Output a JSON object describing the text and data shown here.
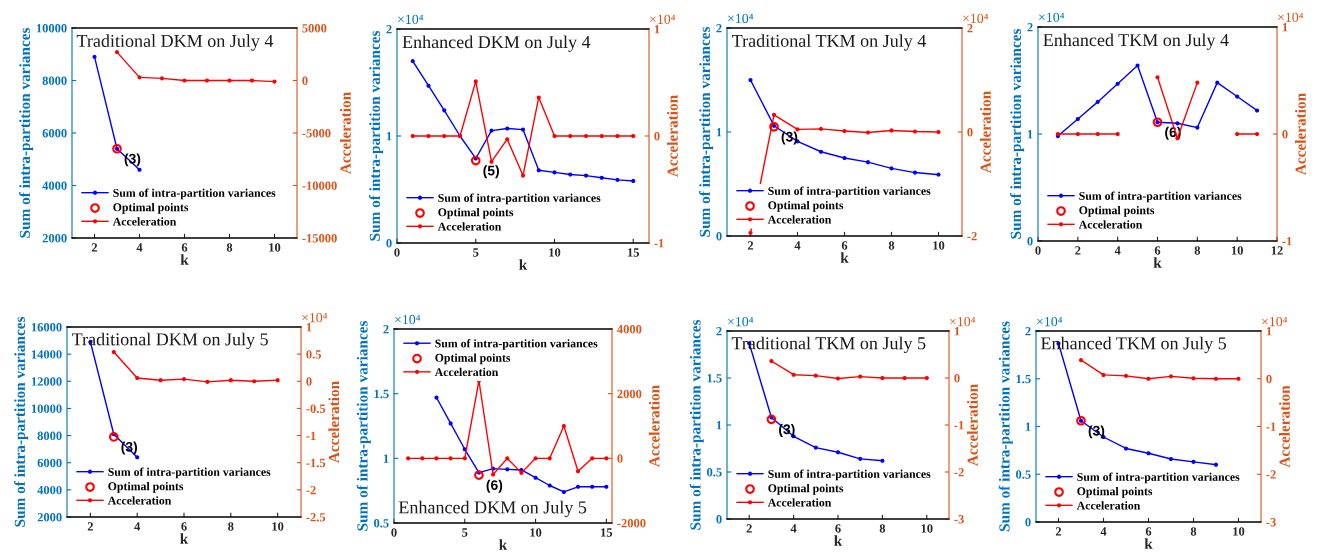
{
  "chart_data": [
    {
      "type": "line",
      "title": "Traditional DKM on July 4",
      "xlabel": "k",
      "ylabel": "Sum of intra-partition variances",
      "y2label": "Acceleration",
      "legend": "bottom left",
      "xlim": [
        1,
        11
      ],
      "xticks": [
        2,
        4,
        6,
        8,
        10
      ],
      "ylim": [
        2000,
        10000
      ],
      "yticks": [
        2000,
        4000,
        6000,
        8000,
        10000
      ],
      "y2lim": [
        -15000,
        5000
      ],
      "y2ticks": [
        -15000,
        -10000,
        -5000,
        0,
        5000
      ],
      "annotations": [
        {
          "text": "(3)",
          "x": 3,
          "y": 5400
        }
      ],
      "series": [
        {
          "name": "Sum of intra-partition variances",
          "color": "#0000ff",
          "marker": "circle",
          "x": [
            2,
            3,
            4
          ],
          "values": [
            8900,
            5400,
            4600
          ]
        },
        {
          "name": "Optimal points",
          "type": "scatter",
          "color": "#ff0000",
          "marker": "circle",
          "x": [
            3
          ],
          "values": [
            5400
          ]
        },
        {
          "name": "Acceleration",
          "axis": "y2",
          "color": "#ff0000",
          "marker": "circle",
          "x": [
            3,
            4,
            5,
            6,
            7,
            8,
            9,
            10
          ],
          "values": [
            2700,
            300,
            200,
            0,
            0,
            0,
            0,
            -100
          ]
        }
      ]
    },
    {
      "type": "line",
      "title": "Enhanced DKM on July 4",
      "xlabel": "k",
      "ylabel": "Sum of intra-partition variances",
      "y2label": "Acceleration",
      "legend": "bottom left",
      "xlim": [
        0,
        16
      ],
      "xticks": [
        0,
        5,
        10,
        15
      ],
      "ylim": [
        0,
        2
      ],
      "yticks": [
        0,
        1,
        2
      ],
      "y2lim": [
        -1,
        1
      ],
      "y2ticks": [
        -1,
        0,
        1
      ],
      "annotations": [
        {
          "text": "(5)",
          "x": 5,
          "y": 0.77
        },
        "×10⁴",
        "×10⁴"
      ],
      "series": [
        {
          "name": "Sum of intra-partition variances",
          "color": "#0000ff",
          "marker": "circle",
          "x": [
            1,
            2,
            3,
            4,
            5,
            6,
            7,
            8,
            9,
            10,
            11,
            12,
            13,
            14,
            15
          ],
          "values": [
            1.7,
            1.47,
            1.24,
            1.0,
            0.79,
            1.05,
            1.07,
            1.06,
            0.68,
            0.66,
            0.64,
            0.63,
            0.61,
            0.59,
            0.58
          ]
        },
        {
          "name": "Optimal points",
          "type": "scatter",
          "color": "#ff0000",
          "marker": "circle",
          "x": [
            5
          ],
          "values": [
            0.77
          ]
        },
        {
          "name": "Acceleration",
          "axis": "y2",
          "color": "#ff0000",
          "marker": "circle",
          "x": [
            1,
            2,
            3,
            4,
            5,
            6,
            7,
            8,
            9,
            10,
            11,
            12,
            13,
            14,
            15
          ],
          "values": [
            0,
            0,
            0,
            0,
            0.51,
            -0.24,
            -0.03,
            -0.37,
            0.36,
            0,
            0,
            0,
            0,
            0,
            0
          ]
        }
      ]
    },
    {
      "type": "line",
      "title": "Traditional TKM on July 4",
      "xlabel": "k",
      "ylabel": "Sum of intra-partition variances",
      "y2label": "Acceleration",
      "legend": "bottom left",
      "xlim": [
        1,
        11
      ],
      "xticks": [
        2,
        4,
        6,
        8,
        10
      ],
      "ylim": [
        0,
        2
      ],
      "yticks": [
        0,
        1,
        2
      ],
      "y2lim": [
        -2,
        2
      ],
      "y2ticks": [
        -2,
        0,
        2
      ],
      "annotations": [
        {
          "text": "(3)",
          "x": 3,
          "y": 1.05
        },
        "×10⁴",
        "×10⁴"
      ],
      "series": [
        {
          "name": "Sum of intra-partition variances",
          "color": "#0000ff",
          "marker": "circle",
          "x": [
            2,
            3,
            4,
            5,
            6,
            7,
            8,
            9,
            10
          ],
          "values": [
            1.5,
            1.06,
            0.91,
            0.81,
            0.75,
            0.71,
            0.65,
            0.61,
            0.59
          ]
        },
        {
          "name": "Optimal points",
          "type": "scatter",
          "color": "#ff0000",
          "marker": "circle",
          "x": [
            3
          ],
          "values": [
            1.05
          ]
        },
        {
          "name": "Acceleration",
          "axis": "y2",
          "color": "#ff0000",
          "marker": "circle",
          "x": [
            2,
            3,
            4,
            5,
            6,
            7,
            8,
            9,
            10
          ],
          "values": [
            -1.94,
            0.33,
            0.05,
            0.06,
            0.02,
            -0.01,
            0.03,
            0.01,
            0
          ]
        }
      ]
    },
    {
      "type": "line",
      "title": "Enhanced TKM on July 4",
      "xlabel": "k",
      "ylabel": "Sum of intra-partition variances",
      "y2label": "Acceleration",
      "legend": "bottom left",
      "xlim": [
        0,
        12
      ],
      "xticks": [
        0,
        2,
        4,
        6,
        8,
        10,
        12
      ],
      "ylim": [
        0,
        2
      ],
      "yticks": [
        0,
        1,
        2
      ],
      "y2lim": [
        -1,
        1
      ],
      "y2ticks": [
        -1,
        0,
        1
      ],
      "annotations": [
        {
          "text": "(6)",
          "x": 6,
          "y": 1.11
        },
        "×10⁴",
        "×10⁴"
      ],
      "series": [
        {
          "name": "Sum of intra-partition variances",
          "color": "#0000ff",
          "marker": "circle",
          "x": [
            1,
            2,
            3,
            4,
            5,
            6,
            7,
            8,
            9,
            10,
            11
          ],
          "values": [
            0.98,
            1.14,
            1.3,
            1.47,
            1.64,
            1.11,
            1.1,
            1.06,
            1.48,
            1.35,
            1.22
          ]
        },
        {
          "name": "Optimal points",
          "type": "scatter",
          "color": "#ff0000",
          "marker": "circle",
          "x": [
            6
          ],
          "values": [
            1.11
          ]
        },
        {
          "name": "Acceleration",
          "axis": "y2",
          "color": "#ff0000",
          "marker": "circle",
          "x": [
            1,
            2,
            3,
            4,
            5,
            6,
            7,
            8,
            9,
            10,
            11
          ],
          "values": [
            0,
            0,
            0,
            0,
            null,
            0.53,
            -0.04,
            0.48,
            null,
            0,
            0
          ]
        }
      ]
    },
    {
      "type": "line",
      "title": "Traditional DKM on July 5",
      "xlabel": "k",
      "ylabel": "Sum of intra-partition variances",
      "y2label": "Acceleration",
      "legend": "bottom left",
      "xlim": [
        1,
        11
      ],
      "xticks": [
        2,
        4,
        6,
        8,
        10
      ],
      "ylim": [
        2000,
        16000
      ],
      "yticks": [
        2000,
        4000,
        6000,
        8000,
        10000,
        12000,
        14000,
        16000
      ],
      "y2lim": [
        -2.5,
        1
      ],
      "y2ticks": [
        -2.5,
        -2,
        -1.5,
        -1,
        -0.5,
        0,
        0.5,
        1
      ],
      "annotations": [
        {
          "text": "(3)",
          "x": 3,
          "y": 7900
        },
        "×10⁴"
      ],
      "series": [
        {
          "name": "Sum of intra-partition variances",
          "color": "#0000ff",
          "marker": "circle",
          "x": [
            2,
            3,
            4
          ],
          "values": [
            14900,
            8100,
            6400
          ]
        },
        {
          "name": "Optimal points",
          "type": "scatter",
          "color": "#ff0000",
          "marker": "circle",
          "x": [
            3
          ],
          "values": [
            7900
          ]
        },
        {
          "name": "Acceleration",
          "axis": "y2",
          "color": "#ff0000",
          "marker": "circle",
          "x": [
            3,
            4,
            5,
            6,
            7,
            8,
            9,
            10
          ],
          "values": [
            0.54,
            0.06,
            0.02,
            0.04,
            -0.01,
            0.02,
            0,
            0.02
          ]
        }
      ]
    },
    {
      "type": "line",
      "title": "Enhanced DKM on July 5",
      "xlabel": "k",
      "ylabel": "Sum of intra-partition variances",
      "y2label": "Acceleration",
      "legend": "top left",
      "xlim": [
        0,
        15.4
      ],
      "xticks": [
        0,
        5,
        10,
        15
      ],
      "ylim": [
        0.5,
        2
      ],
      "yticks": [
        0.5,
        1,
        1.5,
        2
      ],
      "y2lim": [
        -2000,
        4000
      ],
      "y2ticks": [
        -2000,
        0,
        2000,
        4000
      ],
      "annotations": [
        {
          "text": "(6)",
          "x": 6,
          "y": 0.87
        },
        "×10⁴"
      ],
      "series": [
        {
          "name": "Sum of intra-partition variances",
          "color": "#0000ff",
          "marker": "circle",
          "x": [
            3,
            4,
            5,
            6,
            7,
            8,
            9,
            10,
            11,
            12,
            13,
            14,
            15
          ],
          "values": [
            1.47,
            1.27,
            1.07,
            0.89,
            0.92,
            0.915,
            0.91,
            0.85,
            0.79,
            0.74,
            0.78,
            0.78,
            0.78
          ]
        },
        {
          "name": "Optimal points",
          "type": "scatter",
          "color": "#ff0000",
          "marker": "circle",
          "x": [
            6
          ],
          "values": [
            0.87
          ]
        },
        {
          "name": "Acceleration",
          "axis": "y2",
          "color": "#ff0000",
          "marker": "circle",
          "x": [
            1,
            2,
            3,
            4,
            5,
            6,
            7,
            8,
            9,
            10,
            11,
            12,
            13,
            14,
            15
          ],
          "values": [
            0,
            0,
            0,
            0,
            0,
            2400,
            -500,
            0,
            -450,
            0,
            0,
            1000,
            -400,
            0,
            0
          ]
        }
      ]
    },
    {
      "type": "line",
      "title": "Traditional TKM on July 5",
      "xlabel": "k",
      "ylabel": "Sum of intra-partition variances",
      "y2label": "Acceleration",
      "legend": "bottom left",
      "xlim": [
        1,
        11
      ],
      "xticks": [
        2,
        4,
        6,
        8,
        10
      ],
      "ylim": [
        0,
        2
      ],
      "yticks": [
        0,
        0.5,
        1,
        1.5,
        2
      ],
      "y2lim": [
        -3,
        1
      ],
      "y2ticks": [
        -3,
        -2,
        -1,
        0,
        1
      ],
      "annotations": [
        {
          "text": "(3)",
          "x": 3,
          "y": 1.06
        },
        "×10⁴",
        "×10⁴"
      ],
      "series": [
        {
          "name": "Sum of intra-partition variances",
          "color": "#0000ff",
          "marker": "circle",
          "x": [
            2,
            3,
            4,
            5,
            6,
            7,
            8
          ],
          "values": [
            1.87,
            1.08,
            0.88,
            0.76,
            0.71,
            0.64,
            0.62
          ]
        },
        {
          "name": "Optimal points",
          "type": "scatter",
          "color": "#ff0000",
          "marker": "circle",
          "x": [
            3
          ],
          "values": [
            1.06
          ]
        },
        {
          "name": "Acceleration",
          "axis": "y2",
          "color": "#ff0000",
          "marker": "circle",
          "x": [
            3,
            4,
            5,
            6,
            7,
            8,
            9,
            10
          ],
          "values": [
            0.36,
            0.07,
            0.05,
            -0.01,
            0.03,
            0,
            0,
            0
          ]
        }
      ]
    },
    {
      "type": "line",
      "title": "Enhanced TKM on July 5",
      "xlabel": "k",
      "ylabel": "Sum of intra-partition variances",
      "y2label": "Acceleration",
      "legend": "bottom left",
      "xlim": [
        1,
        11
      ],
      "xticks": [
        2,
        4,
        6,
        8,
        10
      ],
      "ylim": [
        0,
        2
      ],
      "yticks": [
        0,
        0.5,
        1,
        1.5,
        2
      ],
      "y2lim": [
        -3,
        1
      ],
      "y2ticks": [
        -3,
        -2,
        -1,
        0,
        1
      ],
      "annotations": [
        {
          "text": "(3)",
          "x": 3,
          "y": 1.06
        },
        "×10⁴",
        "×10⁴"
      ],
      "series": [
        {
          "name": "Sum of intra-partition variances",
          "color": "#0000ff",
          "marker": "circle",
          "x": [
            2,
            3,
            4,
            5,
            6,
            7,
            8,
            9
          ],
          "values": [
            1.87,
            1.06,
            0.89,
            0.77,
            0.72,
            0.66,
            0.63,
            0.6
          ]
        },
        {
          "name": "Optimal points",
          "type": "scatter",
          "color": "#ff0000",
          "marker": "circle",
          "x": [
            3
          ],
          "values": [
            1.06
          ]
        },
        {
          "name": "Acceleration",
          "axis": "y2",
          "color": "#ff0000",
          "marker": "circle",
          "x": [
            3,
            4,
            5,
            6,
            7,
            8,
            9,
            10
          ],
          "values": [
            0.39,
            0.08,
            0.06,
            0,
            0.05,
            0.01,
            0,
            0
          ]
        }
      ]
    }
  ]
}
